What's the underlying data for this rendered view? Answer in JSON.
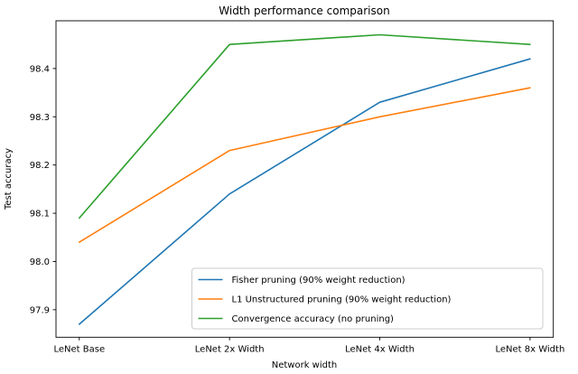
{
  "figure": {
    "background": "#ffffff",
    "spine_color": "#000000"
  },
  "chart_data": {
    "type": "line",
    "title": "Width performance comparison",
    "xlabel": "Network width",
    "ylabel": "Test accuracy",
    "categories": [
      "LeNet Base",
      "LeNet 2x Width",
      "LeNet 4x Width",
      "LeNet 8x Width"
    ],
    "series": [
      {
        "name": "Fisher pruning (90% weight reduction)",
        "color": "#1f77b4",
        "values": [
          97.87,
          98.14,
          98.33,
          98.42
        ]
      },
      {
        "name": "L1 Unstructured pruning (90% weight reduction)",
        "color": "#ff7f0e",
        "values": [
          98.04,
          98.23,
          98.3,
          98.36
        ]
      },
      {
        "name": "Convergence accuracy (no pruning)",
        "color": "#2ca02c",
        "values": [
          98.09,
          98.45,
          98.47,
          98.45
        ]
      }
    ],
    "y_ticks": [
      98.4,
      98.3,
      98.2,
      98.1,
      98.0,
      97.9
    ],
    "ylim": [
      97.843,
      98.499
    ],
    "grid": false,
    "legend_position": "lower right"
  }
}
